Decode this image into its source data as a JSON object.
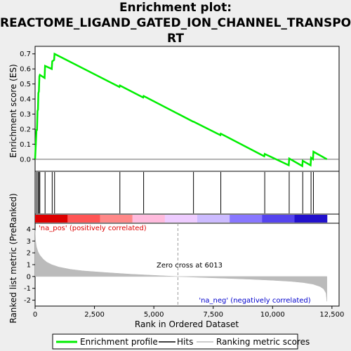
{
  "title_lines": [
    "Enrichment plot:",
    "REACTOME_LIGAND_GATED_ION_CHANNEL_TRANSPO",
    "RT"
  ],
  "chart_data": {
    "type": "line",
    "xlabel": "Rank in Ordered Dataset",
    "xlim": [
      0,
      12800
    ],
    "x_ticks": [
      0,
      2500,
      5000,
      7500,
      10000,
      12500
    ],
    "x_tick_labels": [
      "0",
      "2,500",
      "5,000",
      "7,500",
      "10,000",
      "12,500"
    ],
    "es_panel": {
      "ylabel": "Enrichment score (ES)",
      "ylim": [
        -0.08,
        0.75
      ],
      "y_ticks": [
        0.0,
        0.1,
        0.2,
        0.3,
        0.4,
        0.5,
        0.6,
        0.7
      ],
      "y_tick_labels": [
        "0.0",
        "0.1",
        "0.2",
        "0.3",
        "0.4",
        "0.5",
        "0.6",
        "0.7"
      ],
      "series": [
        {
          "name": "Enrichment profile",
          "color": "#00ee00",
          "x": [
            0,
            60,
            80,
            100,
            120,
            140,
            160,
            180,
            200,
            400,
            420,
            700,
            720,
            800,
            820,
            3550,
            3570,
            4550,
            4570,
            6650,
            6670,
            7800,
            7820,
            9650,
            9670,
            10680,
            10700,
            11250,
            11270,
            11600,
            11620,
            11700,
            11720,
            12290
          ],
          "y": [
            0.0,
            0.2,
            0.19,
            0.32,
            0.33,
            0.44,
            0.45,
            0.55,
            0.56,
            0.54,
            0.62,
            0.6,
            0.65,
            0.66,
            0.7,
            0.48,
            0.49,
            0.41,
            0.42,
            0.25,
            0.25,
            0.16,
            0.17,
            0.02,
            0.035,
            -0.04,
            0.005,
            -0.045,
            -0.01,
            -0.04,
            0.01,
            0.0,
            0.05,
            0.0
          ]
        }
      ]
    },
    "hits": {
      "name": "Hits",
      "x": [
        60,
        120,
        160,
        200,
        420,
        720,
        820,
        3570,
        4570,
        6670,
        7820,
        9670,
        10700,
        11270,
        11620,
        11720
      ]
    },
    "rank_colors": [
      "#dd0000",
      "#ff5555",
      "#ff8888",
      "#ffbbdd",
      "#eeccff",
      "#ccbbff",
      "#8877ff",
      "#5544ee",
      "#2211cc"
    ],
    "ranking_panel": {
      "ylabel": "Ranked list metric (PreRanked)",
      "ylim": [
        -2.5,
        4.5
      ],
      "y_ticks": [
        -2,
        -1,
        0,
        1,
        2,
        3,
        4
      ],
      "y_tick_labels": [
        "-2",
        "-1",
        "0",
        "1",
        "2",
        "3",
        "4"
      ],
      "series": [
        {
          "name": "Ranking metric scores",
          "color": "#bbbbbb",
          "x": [
            0,
            20,
            60,
            120,
            200,
            350,
            500,
            700,
            1000,
            1500,
            2000,
            3000,
            4000,
            5000,
            6013,
            7000,
            8000,
            9000,
            10000,
            10800,
            11300,
            11700,
            12000,
            12150,
            12250,
            12290
          ],
          "y": [
            3.9,
            3.0,
            2.5,
            2.1,
            1.8,
            1.45,
            1.2,
            1.0,
            0.8,
            0.6,
            0.48,
            0.33,
            0.2,
            0.1,
            0.0,
            -0.08,
            -0.15,
            -0.23,
            -0.32,
            -0.42,
            -0.52,
            -0.65,
            -0.85,
            -1.05,
            -1.4,
            -2.1
          ]
        }
      ],
      "zero_cross_label": "Zero cross at 6013",
      "zero_cross_x": 6013,
      "pos_label": "'na_pos' (positively correlated)",
      "neg_label": "'na_neg' (negatively correlated)"
    },
    "legend": {
      "placement": "bottom",
      "entries": [
        {
          "label": "Enrichment profile",
          "color": "#00ee00"
        },
        {
          "label": "Hits",
          "color": "#000000"
        },
        {
          "label": "Ranking metric scores",
          "color": "#bbbbbb"
        }
      ]
    }
  }
}
